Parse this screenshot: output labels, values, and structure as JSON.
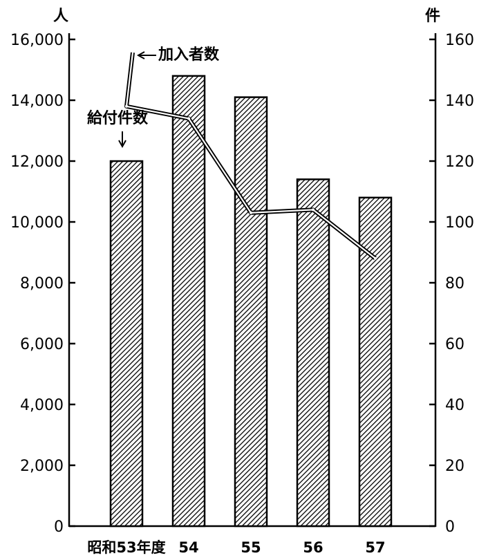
{
  "chart_data": {
    "type": "bar",
    "categories": [
      "昭和53年度",
      "54",
      "55",
      "56",
      "57"
    ],
    "left_axis": {
      "unit": "人",
      "ylim": [
        0,
        16000
      ],
      "ticks": [
        "0",
        "2,000",
        "4,000",
        "6,000",
        "8,000",
        "10,000",
        "12,000",
        "14,000",
        "16,000"
      ]
    },
    "right_axis": {
      "unit": "件",
      "ylim": [
        0,
        160
      ],
      "ticks": [
        "0",
        "20",
        "40",
        "60",
        "80",
        "100",
        "120",
        "140",
        "160"
      ]
    },
    "series": [
      {
        "name": "給付件数",
        "kind": "bar",
        "axis": "right",
        "values": [
          120,
          148,
          141,
          114,
          108
        ]
      },
      {
        "name": "加入者数",
        "kind": "line",
        "axis": "left",
        "values": [
          13800,
          13400,
          10300,
          10400,
          8800
        ]
      }
    ],
    "grid": false,
    "colors": {
      "bar_fill": "#ffffff",
      "bar_hatch": "#000000",
      "line": "#000000",
      "line_halo": "#ffffff"
    }
  }
}
